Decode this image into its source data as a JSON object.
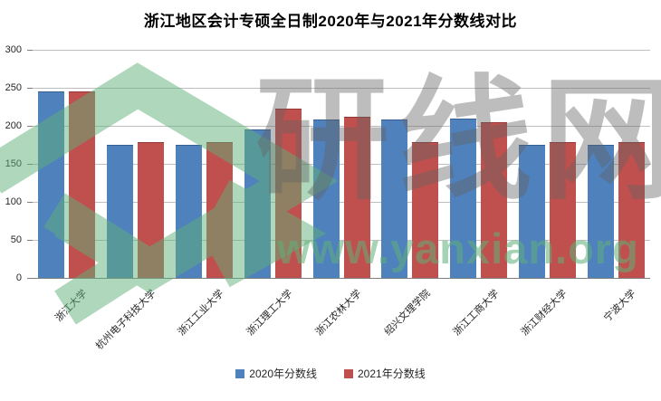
{
  "chart_data": {
    "type": "bar",
    "title": "浙江地区会计专硕全日制2020年与2021年分数线对比",
    "categories": [
      "浙江大学",
      "杭州电子科技大学",
      "浙江工业大学",
      "浙江理工大学",
      "浙江农林大学",
      "绍兴文理学院",
      "浙江工商大学",
      "浙江财经大学",
      "宁波大学"
    ],
    "series": [
      {
        "name": "2020年分数线",
        "color": "#4F81BD",
        "values": [
          245,
          175,
          175,
          195,
          208,
          208,
          210,
          175,
          175
        ]
      },
      {
        "name": "2021年分数线",
        "color": "#C0504D",
        "values": [
          245,
          179,
          179,
          223,
          212,
          179,
          205,
          179,
          179
        ]
      }
    ],
    "xlabel": "",
    "ylabel": "",
    "ylim": [
      0,
      300
    ],
    "yticks": [
      0,
      50,
      100,
      150,
      200,
      250,
      300
    ],
    "grid": true,
    "legend_position": "bottom"
  },
  "watermark": {
    "brand_text": "研线网",
    "url_text": "www.yanxian.org",
    "green": "#60B07A",
    "grey": "#646464"
  }
}
